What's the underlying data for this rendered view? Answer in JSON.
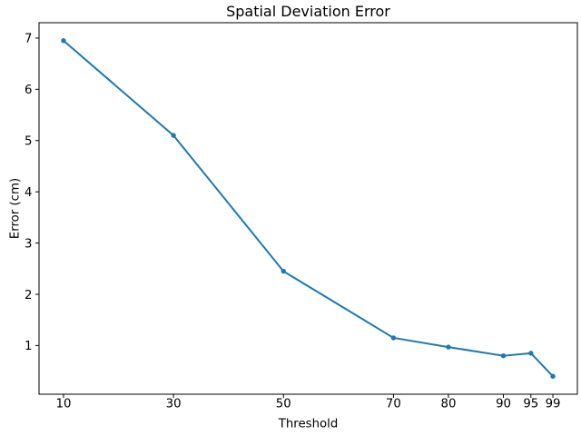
{
  "figure": {
    "title": "Spatial Deviation Error",
    "xlabel": "Threshold",
    "ylabel": "Error (cm)"
  },
  "chart_data": {
    "type": "line",
    "title": "Spatial Deviation Error",
    "xlabel": "Threshold",
    "ylabel": "Error (cm)",
    "x": [
      10,
      30,
      50,
      70,
      80,
      90,
      95,
      99
    ],
    "y": [
      6.95,
      5.1,
      2.45,
      1.15,
      0.97,
      0.8,
      0.85,
      0.4
    ],
    "xticks": [
      "10",
      "30",
      "50",
      "70",
      "80",
      "90",
      "95",
      "99"
    ],
    "yticks": [
      "1",
      "2",
      "3",
      "4",
      "5",
      "6",
      "7"
    ],
    "xlim": [
      5.55,
      103.45
    ],
    "ylim": [
      0.05,
      7.3
    ],
    "line_color": "#1f77b4",
    "marker": "circle",
    "marker_size": 2.7,
    "line_width": 2,
    "axis_color": "#000000",
    "background": "#ffffff",
    "grid": false,
    "legend": null
  }
}
